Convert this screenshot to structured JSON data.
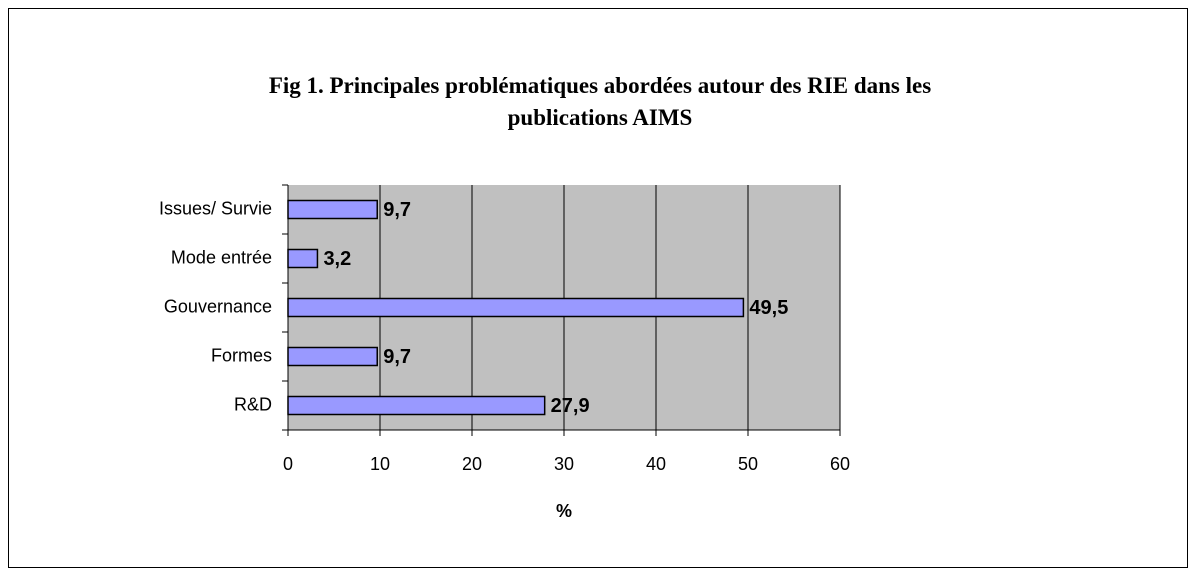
{
  "chart_data": {
    "type": "bar",
    "orientation": "horizontal",
    "title": "Fig 1. Principales problématiques abordées autour des RIE dans les publications AIMS",
    "categories": [
      "Issues/ Survie",
      "Mode entrée",
      "Gouvernance",
      "Formes",
      "R&D"
    ],
    "values": [
      9.7,
      3.2,
      49.5,
      9.7,
      27.9
    ],
    "value_labels": [
      "9,7",
      "3,2",
      "49,5",
      "9,7",
      "27,9"
    ],
    "color": "#9999ff",
    "xlabel": "%",
    "xlim": [
      0,
      60
    ],
    "xticks": [
      0,
      10,
      20,
      30,
      40,
      50,
      60
    ],
    "grid": true
  }
}
